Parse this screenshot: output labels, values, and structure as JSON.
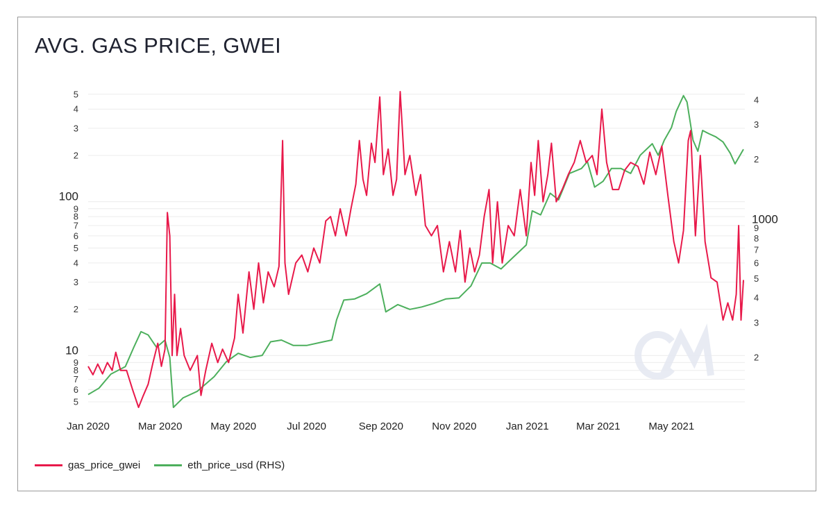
{
  "title": "AVG. GAS PRICE, GWEI",
  "watermark": "CM",
  "chart_data": {
    "type": "line",
    "title": "AVG. GAS PRICE, GWEI",
    "x_range": [
      "2020-01-01",
      "2021-06-30"
    ],
    "x_ticks": [
      {
        "date": "2020-01-01",
        "label": "Jan 2020"
      },
      {
        "date": "2020-03-01",
        "label": "Mar 2020"
      },
      {
        "date": "2020-05-01",
        "label": "May 2020"
      },
      {
        "date": "2020-07-01",
        "label": "Jul 2020"
      },
      {
        "date": "2020-09-01",
        "label": "Sep 2020"
      },
      {
        "date": "2020-11-01",
        "label": "Nov 2020"
      },
      {
        "date": "2021-01-01",
        "label": "Jan 2021"
      },
      {
        "date": "2021-03-01",
        "label": "Mar 2021"
      },
      {
        "date": "2021-05-01",
        "label": "May 2021"
      }
    ],
    "y_left": {
      "scale": "log",
      "range": [
        4.6,
        520
      ],
      "ticks": [
        {
          "v": 5,
          "l": "5"
        },
        {
          "v": 6,
          "l": "6"
        },
        {
          "v": 7,
          "l": "7"
        },
        {
          "v": 8,
          "l": "8"
        },
        {
          "v": 9,
          "l": "9"
        },
        {
          "v": 10,
          "l": "10",
          "major": true
        },
        {
          "v": 20,
          "l": "2"
        },
        {
          "v": 30,
          "l": "3"
        },
        {
          "v": 40,
          "l": "4"
        },
        {
          "v": 50,
          "l": "5"
        },
        {
          "v": 60,
          "l": "6"
        },
        {
          "v": 70,
          "l": "7"
        },
        {
          "v": 80,
          "l": "8"
        },
        {
          "v": 90,
          "l": "9"
        },
        {
          "v": 100,
          "l": "100",
          "major": true
        },
        {
          "v": 200,
          "l": "2"
        },
        {
          "v": 300,
          "l": "3"
        },
        {
          "v": 400,
          "l": "4"
        },
        {
          "v": 500,
          "l": "5"
        }
      ]
    },
    "y_right": {
      "scale": "log",
      "range": [
        112,
        4400
      ],
      "ticks": [
        {
          "v": 200,
          "l": "2"
        },
        {
          "v": 300,
          "l": "3"
        },
        {
          "v": 400,
          "l": "4"
        },
        {
          "v": 500,
          "l": "5"
        },
        {
          "v": 600,
          "l": "6"
        },
        {
          "v": 700,
          "l": "7"
        },
        {
          "v": 800,
          "l": "8"
        },
        {
          "v": 900,
          "l": "9"
        },
        {
          "v": 1000,
          "l": "1000",
          "major": true
        },
        {
          "v": 2000,
          "l": "2"
        },
        {
          "v": 3000,
          "l": "3"
        },
        {
          "v": 4000,
          "l": "4"
        }
      ]
    },
    "grid": true,
    "legend_position": "bottom-left",
    "series": [
      {
        "name": "gas_price_gwei",
        "axis": "left",
        "color": "#e8194a",
        "points": [
          [
            "2020-01-01",
            8.5
          ],
          [
            "2020-01-05",
            7.5
          ],
          [
            "2020-01-09",
            8.8
          ],
          [
            "2020-01-13",
            7.6
          ],
          [
            "2020-01-17",
            9
          ],
          [
            "2020-01-21",
            8
          ],
          [
            "2020-01-24",
            10.5
          ],
          [
            "2020-01-28",
            8
          ],
          [
            "2020-02-02",
            8
          ],
          [
            "2020-02-07",
            6
          ],
          [
            "2020-02-12",
            4.6
          ],
          [
            "2020-02-16",
            5.5
          ],
          [
            "2020-02-20",
            6.5
          ],
          [
            "2020-02-24",
            9
          ],
          [
            "2020-02-28",
            12
          ],
          [
            "2020-03-02",
            8.5
          ],
          [
            "2020-03-05",
            11
          ],
          [
            "2020-03-07",
            85
          ],
          [
            "2020-03-09",
            60
          ],
          [
            "2020-03-11",
            10
          ],
          [
            "2020-03-13",
            25
          ],
          [
            "2020-03-15",
            10
          ],
          [
            "2020-03-18",
            15
          ],
          [
            "2020-03-21",
            10
          ],
          [
            "2020-03-26",
            8
          ],
          [
            "2020-04-01",
            10
          ],
          [
            "2020-04-04",
            5.5
          ],
          [
            "2020-04-08",
            8
          ],
          [
            "2020-04-13",
            12
          ],
          [
            "2020-04-18",
            9
          ],
          [
            "2020-04-22",
            11
          ],
          [
            "2020-04-27",
            9
          ],
          [
            "2020-05-02",
            13
          ],
          [
            "2020-05-05",
            25
          ],
          [
            "2020-05-09",
            14
          ],
          [
            "2020-05-14",
            35
          ],
          [
            "2020-05-18",
            20
          ],
          [
            "2020-05-22",
            40
          ],
          [
            "2020-05-26",
            22
          ],
          [
            "2020-05-30",
            35
          ],
          [
            "2020-06-04",
            28
          ],
          [
            "2020-06-08",
            38
          ],
          [
            "2020-06-11",
            250
          ],
          [
            "2020-06-13",
            40
          ],
          [
            "2020-06-16",
            25
          ],
          [
            "2020-06-22",
            40
          ],
          [
            "2020-06-27",
            45
          ],
          [
            "2020-07-02",
            35
          ],
          [
            "2020-07-07",
            50
          ],
          [
            "2020-07-12",
            40
          ],
          [
            "2020-07-17",
            75
          ],
          [
            "2020-07-21",
            80
          ],
          [
            "2020-07-25",
            60
          ],
          [
            "2020-07-29",
            90
          ],
          [
            "2020-08-03",
            60
          ],
          [
            "2020-08-07",
            90
          ],
          [
            "2020-08-11",
            130
          ],
          [
            "2020-08-14",
            250
          ],
          [
            "2020-08-17",
            140
          ],
          [
            "2020-08-20",
            110
          ],
          [
            "2020-08-24",
            240
          ],
          [
            "2020-08-27",
            180
          ],
          [
            "2020-08-31",
            480
          ],
          [
            "2020-09-03",
            150
          ],
          [
            "2020-09-07",
            220
          ],
          [
            "2020-09-11",
            110
          ],
          [
            "2020-09-14",
            140
          ],
          [
            "2020-09-17",
            550
          ],
          [
            "2020-09-21",
            150
          ],
          [
            "2020-09-25",
            200
          ],
          [
            "2020-09-30",
            110
          ],
          [
            "2020-10-04",
            150
          ],
          [
            "2020-10-08",
            70
          ],
          [
            "2020-10-13",
            60
          ],
          [
            "2020-10-18",
            70
          ],
          [
            "2020-10-23",
            35
          ],
          [
            "2020-10-28",
            55
          ],
          [
            "2020-11-02",
            35
          ],
          [
            "2020-11-06",
            65
          ],
          [
            "2020-11-10",
            30
          ],
          [
            "2020-11-14",
            50
          ],
          [
            "2020-11-18",
            35
          ],
          [
            "2020-11-22",
            45
          ],
          [
            "2020-11-26",
            80
          ],
          [
            "2020-11-30",
            120
          ],
          [
            "2020-12-03",
            40
          ],
          [
            "2020-12-07",
            100
          ],
          [
            "2020-12-11",
            40
          ],
          [
            "2020-12-16",
            70
          ],
          [
            "2020-12-21",
            60
          ],
          [
            "2020-12-26",
            120
          ],
          [
            "2020-12-31",
            60
          ],
          [
            "2021-01-04",
            180
          ],
          [
            "2021-01-07",
            110
          ],
          [
            "2021-01-10",
            250
          ],
          [
            "2021-01-14",
            100
          ],
          [
            "2021-01-18",
            150
          ],
          [
            "2021-01-21",
            240
          ],
          [
            "2021-01-25",
            100
          ],
          [
            "2021-01-30",
            120
          ],
          [
            "2021-02-04",
            150
          ],
          [
            "2021-02-09",
            180
          ],
          [
            "2021-02-14",
            250
          ],
          [
            "2021-02-19",
            180
          ],
          [
            "2021-02-24",
            200
          ],
          [
            "2021-02-28",
            150
          ],
          [
            "2021-03-04",
            400
          ],
          [
            "2021-03-08",
            180
          ],
          [
            "2021-03-13",
            120
          ],
          [
            "2021-03-18",
            120
          ],
          [
            "2021-03-23",
            160
          ],
          [
            "2021-03-28",
            180
          ],
          [
            "2021-04-03",
            170
          ],
          [
            "2021-04-08",
            130
          ],
          [
            "2021-04-13",
            210
          ],
          [
            "2021-04-18",
            150
          ],
          [
            "2021-04-23",
            230
          ],
          [
            "2021-04-28",
            110
          ],
          [
            "2021-05-03",
            55
          ],
          [
            "2021-05-07",
            40
          ],
          [
            "2021-05-11",
            65
          ],
          [
            "2021-05-15",
            250
          ],
          [
            "2021-05-17",
            290
          ],
          [
            "2021-05-21",
            60
          ],
          [
            "2021-05-25",
            200
          ],
          [
            "2021-05-29",
            55
          ],
          [
            "2021-06-03",
            32
          ],
          [
            "2021-06-08",
            30
          ],
          [
            "2021-06-13",
            17
          ],
          [
            "2021-06-17",
            22
          ],
          [
            "2021-06-21",
            17
          ],
          [
            "2021-06-24",
            25
          ],
          [
            "2021-06-26",
            70
          ],
          [
            "2021-06-28",
            17
          ],
          [
            "2021-06-30",
            31
          ]
        ]
      },
      {
        "name": "eth_price_usd (RHS)",
        "axis": "right",
        "color": "#4caf5c",
        "points": [
          [
            "2020-01-01",
            130
          ],
          [
            "2020-01-10",
            140
          ],
          [
            "2020-01-20",
            165
          ],
          [
            "2020-02-01",
            180
          ],
          [
            "2020-02-08",
            225
          ],
          [
            "2020-02-14",
            270
          ],
          [
            "2020-02-20",
            260
          ],
          [
            "2020-02-27",
            225
          ],
          [
            "2020-03-05",
            245
          ],
          [
            "2020-03-09",
            200
          ],
          [
            "2020-03-12",
            110
          ],
          [
            "2020-03-20",
            125
          ],
          [
            "2020-04-01",
            135
          ],
          [
            "2020-04-15",
            160
          ],
          [
            "2020-04-25",
            190
          ],
          [
            "2020-05-05",
            210
          ],
          [
            "2020-05-15",
            200
          ],
          [
            "2020-05-25",
            205
          ],
          [
            "2020-06-01",
            240
          ],
          [
            "2020-06-10",
            245
          ],
          [
            "2020-06-20",
            230
          ],
          [
            "2020-07-01",
            230
          ],
          [
            "2020-07-15",
            240
          ],
          [
            "2020-07-22",
            245
          ],
          [
            "2020-07-26",
            310
          ],
          [
            "2020-08-01",
            390
          ],
          [
            "2020-08-10",
            395
          ],
          [
            "2020-08-20",
            420
          ],
          [
            "2020-08-31",
            470
          ],
          [
            "2020-09-05",
            340
          ],
          [
            "2020-09-15",
            370
          ],
          [
            "2020-09-25",
            350
          ],
          [
            "2020-10-05",
            360
          ],
          [
            "2020-10-15",
            375
          ],
          [
            "2020-10-25",
            395
          ],
          [
            "2020-11-05",
            400
          ],
          [
            "2020-11-15",
            460
          ],
          [
            "2020-11-24",
            600
          ],
          [
            "2020-12-01",
            600
          ],
          [
            "2020-12-10",
            560
          ],
          [
            "2020-12-20",
            640
          ],
          [
            "2020-12-31",
            740
          ],
          [
            "2021-01-05",
            1100
          ],
          [
            "2021-01-12",
            1050
          ],
          [
            "2021-01-20",
            1350
          ],
          [
            "2021-01-27",
            1250
          ],
          [
            "2021-02-05",
            1700
          ],
          [
            "2021-02-15",
            1800
          ],
          [
            "2021-02-20",
            1950
          ],
          [
            "2021-02-26",
            1450
          ],
          [
            "2021-03-05",
            1550
          ],
          [
            "2021-03-12",
            1800
          ],
          [
            "2021-03-20",
            1800
          ],
          [
            "2021-03-28",
            1700
          ],
          [
            "2021-04-05",
            2100
          ],
          [
            "2021-04-15",
            2400
          ],
          [
            "2021-04-20",
            2100
          ],
          [
            "2021-04-25",
            2500
          ],
          [
            "2021-05-01",
            2900
          ],
          [
            "2021-05-05",
            3500
          ],
          [
            "2021-05-11",
            4200
          ],
          [
            "2021-05-14",
            3900
          ],
          [
            "2021-05-19",
            2500
          ],
          [
            "2021-05-23",
            2200
          ],
          [
            "2021-05-27",
            2800
          ],
          [
            "2021-06-01",
            2700
          ],
          [
            "2021-06-07",
            2600
          ],
          [
            "2021-06-13",
            2450
          ],
          [
            "2021-06-19",
            2150
          ],
          [
            "2021-06-23",
            1900
          ],
          [
            "2021-06-30",
            2250
          ]
        ]
      }
    ]
  },
  "legend": [
    {
      "label": "gas_price_gwei",
      "color": "#e8194a"
    },
    {
      "label": "eth_price_usd (RHS)",
      "color": "#4caf5c"
    }
  ]
}
